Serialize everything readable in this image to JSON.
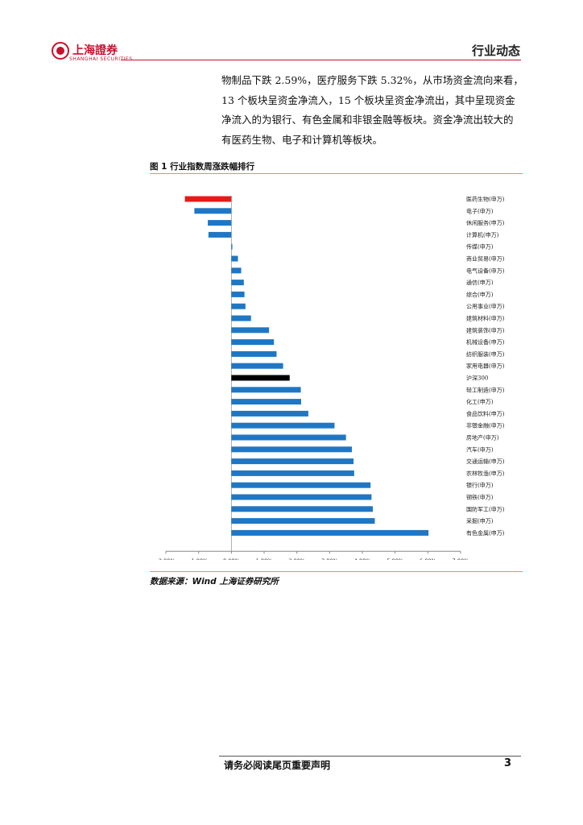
{
  "header": {
    "logo_text": "上海證券",
    "logo_sub": "SHANGHAI SECURITIES",
    "section": "行业动态"
  },
  "paragraph": [
    "物制品下跌 2.59%，医疗服务下跌 5.32%，从市场资金流向来看，",
    "13 个板块呈资金净流入，15 个板块呈资金净流出，其中呈现资金",
    "净流入的为银行、有色金属和非银金融等板块。资金净流出较大的",
    "有医药生物、电子和计算机等板块。"
  ],
  "figure": {
    "title": "图 1 行业指数周涨跌幅排行",
    "source": "数据来源：Wind  上海证券研究所"
  },
  "chart_data": {
    "type": "bar",
    "orientation": "horizontal",
    "title": "",
    "xlabel": "",
    "ylabel": "",
    "xlim": [
      -2.0,
      7.0
    ],
    "x_ticks": [
      "-2.00%",
      "-1.00%",
      "0.00%",
      "1.00%",
      "2.00%",
      "3.00%",
      "4.00%",
      "5.00%",
      "6.00%",
      "7.00%"
    ],
    "colors": {
      "default": "#1f77c4",
      "highlight_negative": "#e31b1b",
      "benchmark": "#000000"
    },
    "categories": [
      "医药生物(申万)",
      "电子(申万)",
      "休闲服务(申万)",
      "计算机(申万)",
      "传媒(申万)",
      "商业贸易(申万)",
      "电气设备(申万)",
      "通信(申万)",
      "综合(申万)",
      "公用事业(申万)",
      "建筑材料(申万)",
      "建筑装饰(申万)",
      "机械设备(申万)",
      "纺织服装(申万)",
      "家用电器(申万)",
      "沪深300",
      "轻工制造(申万)",
      "化工(申万)",
      "食品饮料(申万)",
      "非银金融(申万)",
      "房地产(申万)",
      "汽车(申万)",
      "交通运输(申万)",
      "农林牧渔(申万)",
      "银行(申万)",
      "钢铁(申万)",
      "国防军工(申万)",
      "采掘(申万)",
      "有色金属(申万)"
    ],
    "values": [
      -1.42,
      -1.13,
      -0.72,
      -0.7,
      0.03,
      0.2,
      0.3,
      0.38,
      0.4,
      0.43,
      0.6,
      1.15,
      1.3,
      1.38,
      1.58,
      1.78,
      2.12,
      2.13,
      2.35,
      3.15,
      3.5,
      3.68,
      3.73,
      3.75,
      4.25,
      4.28,
      4.32,
      4.38,
      6.02
    ],
    "bar_colors": [
      "#e31b1b",
      "#1f77c4",
      "#1f77c4",
      "#1f77c4",
      "#1f77c4",
      "#1f77c4",
      "#1f77c4",
      "#1f77c4",
      "#1f77c4",
      "#1f77c4",
      "#1f77c4",
      "#1f77c4",
      "#1f77c4",
      "#1f77c4",
      "#1f77c4",
      "#000000",
      "#1f77c4",
      "#1f77c4",
      "#1f77c4",
      "#1f77c4",
      "#1f77c4",
      "#1f77c4",
      "#1f77c4",
      "#1f77c4",
      "#1f77c4",
      "#1f77c4",
      "#1f77c4",
      "#1f77c4",
      "#1f77c4"
    ],
    "grid": false,
    "legend": "none"
  },
  "footer": {
    "notice": "请务必阅读尾页重要声明",
    "page": "3"
  }
}
